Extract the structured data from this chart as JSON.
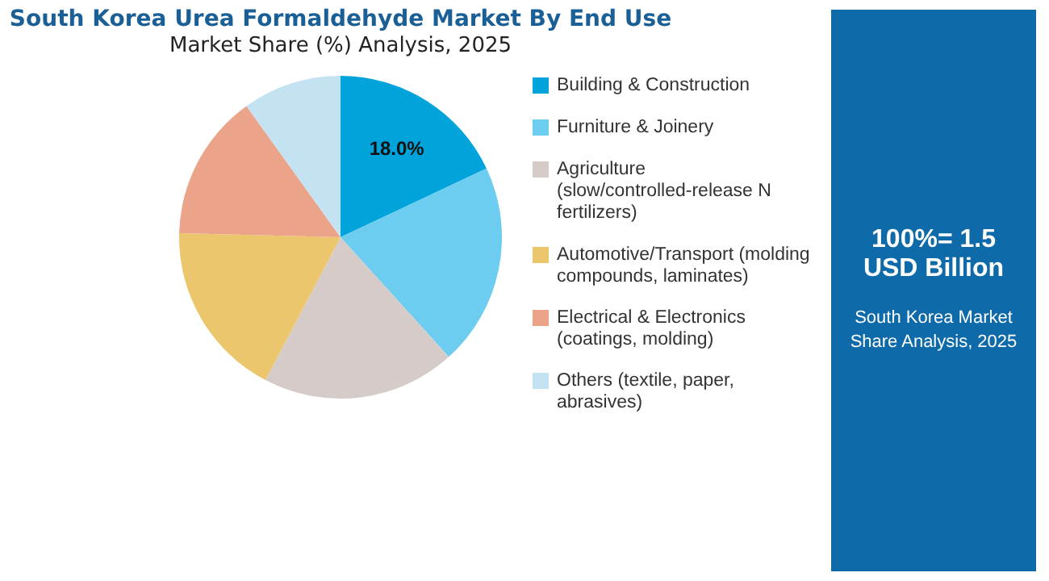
{
  "chart_data": {
    "type": "pie",
    "title": "South Korea Urea Formaldehyde Market By End Use",
    "subtitle": "Market Share (%) Analysis, 2025",
    "categories": [
      "Building & Construction",
      "Furniture & Joinery",
      "Agriculture (slow/controlled-release N fertilizers)",
      "Automotive/Transport (molding compounds, laminates)",
      "Electrical & Electronics (coatings, molding)",
      "Others (textile, paper, abrasives)"
    ],
    "values": [
      18.0,
      20.3,
      19.4,
      17.7,
      14.7,
      9.9
    ],
    "colors": [
      "#00a3da",
      "#6dcdf0",
      "#d5ccc9",
      "#ecc66c",
      "#eba48a",
      "#c3e2f2"
    ],
    "value_labels": [
      "18.0%",
      null,
      null,
      null,
      null,
      null
    ],
    "legend": "right",
    "annotations": [
      "100%= 1.5 USD Billion",
      "South Korea Market Share Analysis, 2025"
    ]
  }
}
